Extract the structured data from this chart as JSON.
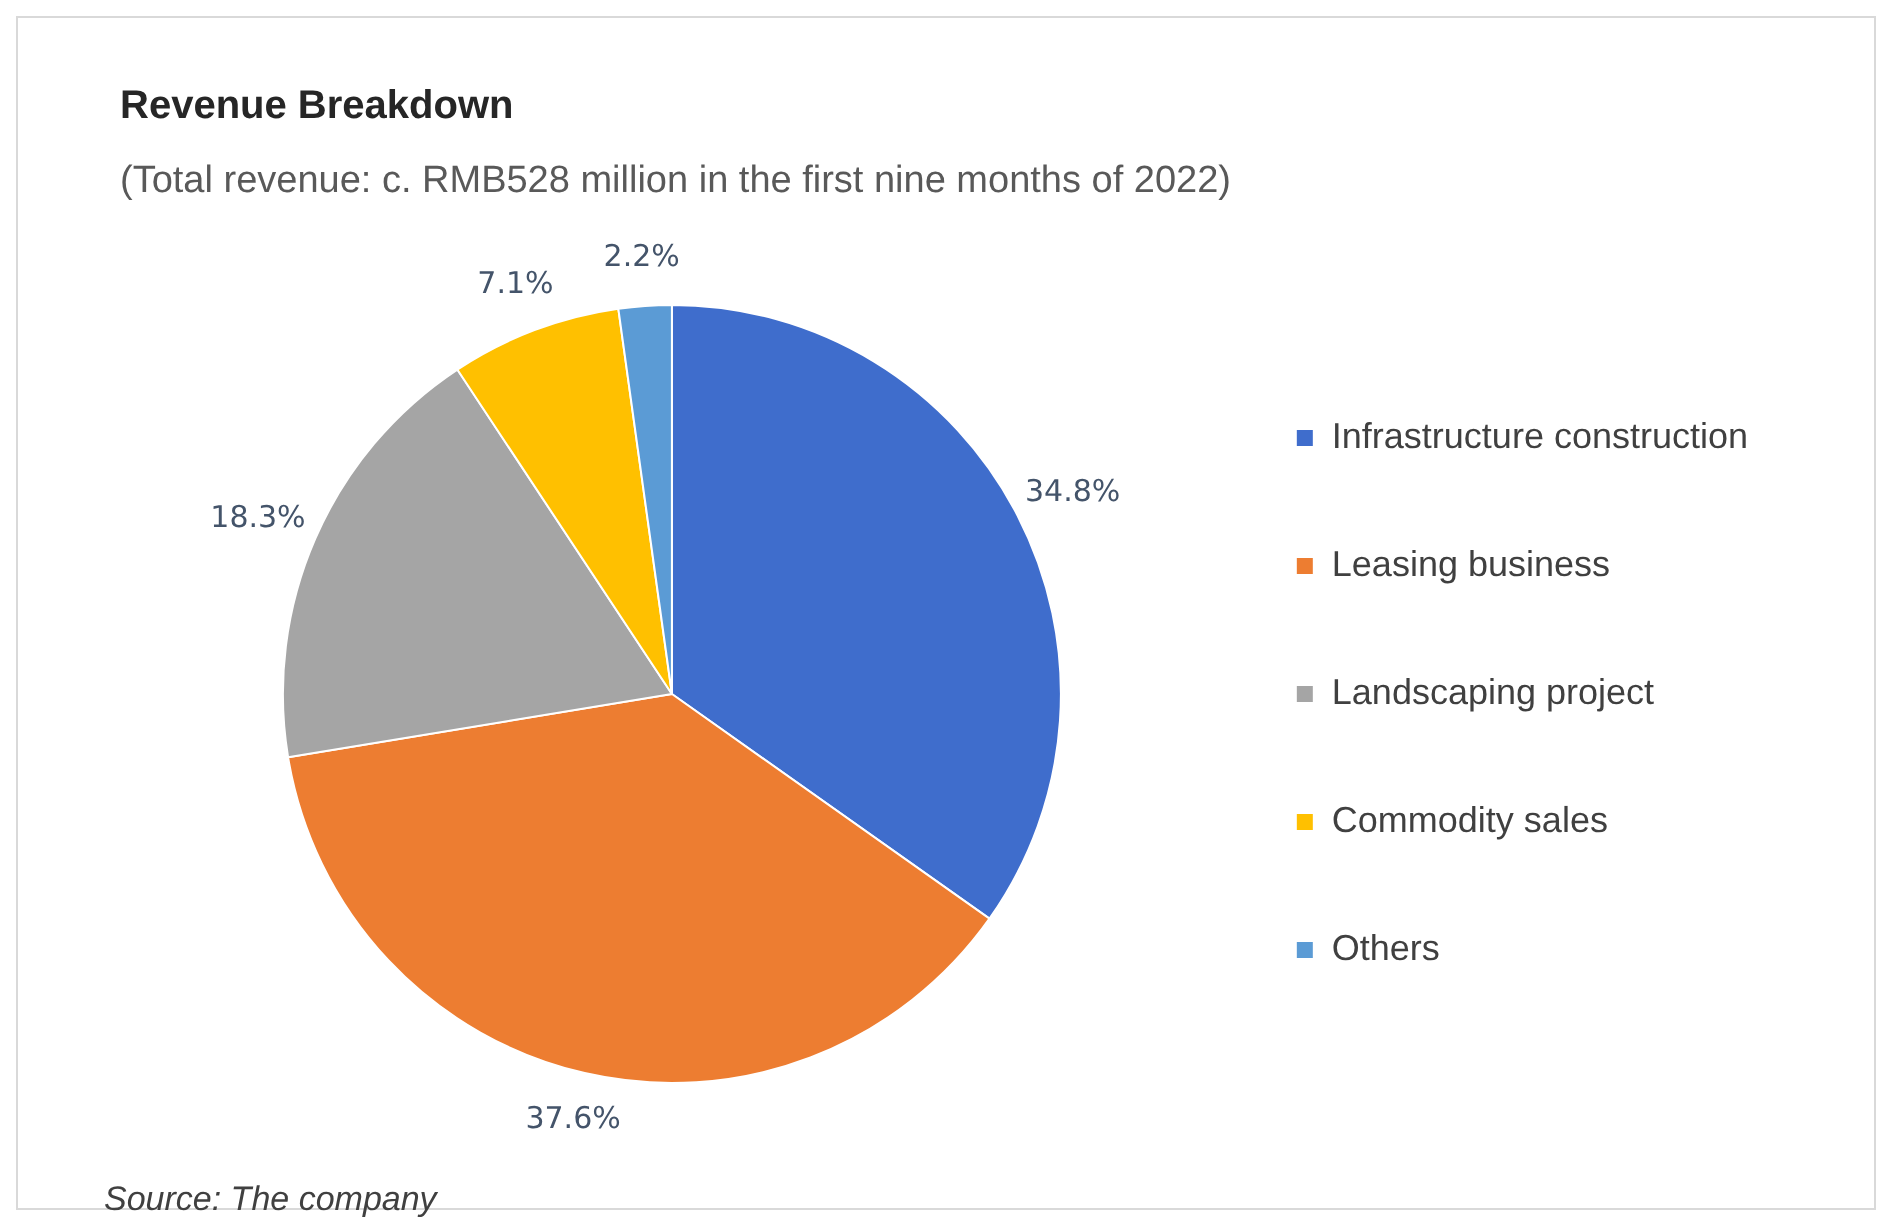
{
  "chart_data": {
    "type": "pie",
    "title": "Revenue Breakdown",
    "subtitle": "(Total revenue: c. RMB528 million in the first nine months of 2022)",
    "categories": [
      "Infrastructure construction",
      "Leasing business",
      "Landscaping project",
      "Commodity sales",
      "Others"
    ],
    "values": [
      34.8,
      37.6,
      18.3,
      7.1,
      2.2
    ],
    "value_labels": [
      "34.8%",
      "37.6%",
      "18.3%",
      "7.1%",
      "2.2%"
    ],
    "colors": [
      "#3f6dcc",
      "#ed7d31",
      "#a5a5a5",
      "#ffc000",
      "#5b9bd5"
    ],
    "legend": "right",
    "annotations": [
      "Source: The company"
    ]
  }
}
